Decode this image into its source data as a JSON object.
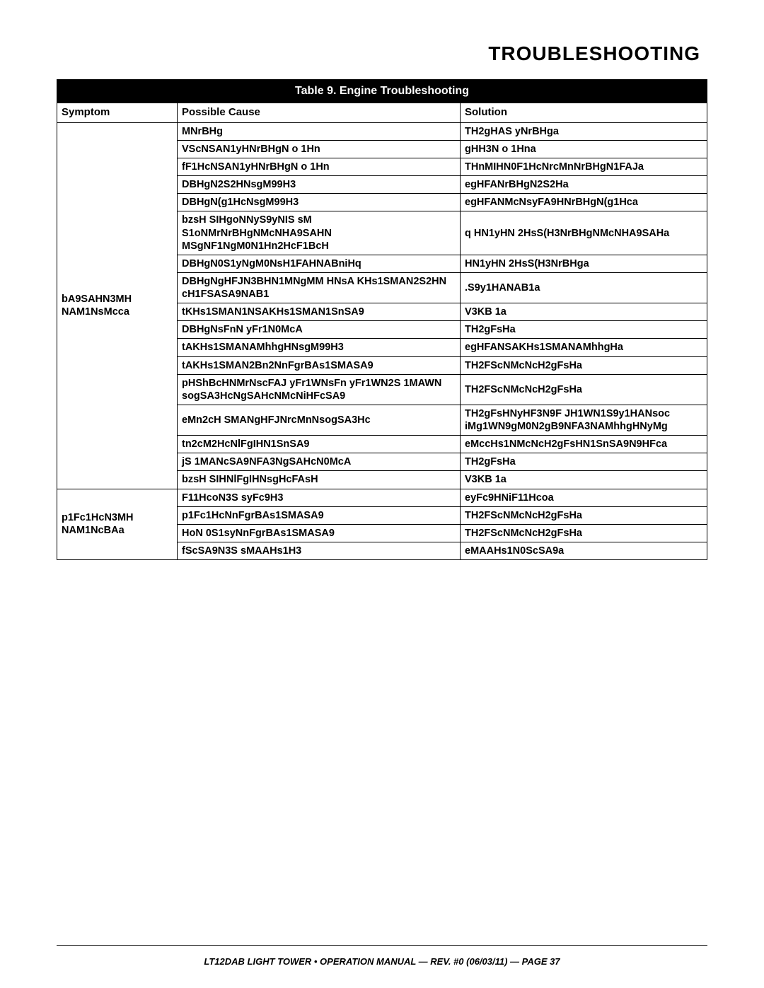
{
  "page_title": "TROUBLESHOOTING",
  "table_caption": "Table 9.  Engine Troubleshooting",
  "headers": {
    "symptom": "Symptom",
    "cause": "Possible Cause",
    "solution": "Solution"
  },
  "group1_symptom": "bA9SAHN3MH NAM1NsMcca",
  "group1_rows": [
    {
      "cause": "MNrBHg",
      "solution": "TH2gHAS yNrBHga"
    },
    {
      "cause": "VScNSAN1yHNrBHgN o 1Hn",
      "solution": "gHH3N o 1Hna"
    },
    {
      "cause": "fF1HcNSAN1yHNrBHgN o 1Hn",
      "solution": "THnMIHN0F1HcNrcMnNrBHgN1FAJa"
    },
    {
      "cause": "DBHgN2S2HNsgM99H3",
      "solution": "egHFANrBHgN2S2Ha"
    },
    {
      "cause": "DBHgN(g1HcNsgM99H3",
      "solution": "egHFANMcNsyFA9HNrBHgN(g1Hca"
    },
    {
      "cause": "bzsH  SIHgoNNyS9yNIS sM S1oNMrNrBHgNMcNHA9SAHN MSgNF1NgM0N1Hn2HcF1BcH",
      "solution": "q HN1yHN 2HsS(H3NrBHgNMcNHA9SAHa"
    },
    {
      "cause": "DBHgN0S1yNgM0NsH1FAHNABniHq",
      "solution": "HN1yHN 2HsS(H3NrBHga"
    },
    {
      "cause": "DBHgNgHFJN3BHN1MNgMM HNsA KHs1SMAN2S2HN cH1FSASA9NAB1",
      "solution": ".S9y1HANAB1a"
    },
    {
      "cause": "tKHs1SMAN1NSAKHs1SMAN1SnSA9",
      "solution": "V3KB 1a"
    },
    {
      "cause": "DBHgNsFnN yFr1N0McA",
      "solution": "TH2gFsHa"
    },
    {
      "cause": "tAKHs1SMANAMhhgHNsgM99H3",
      "solution": "egHFANSAKHs1SMANAMhhgHa"
    },
    {
      "cause": "tAKHs1SMAN2Bn2NnFgrBAs1SMASA9",
      "solution": "TH2FScNMcNcH2gFsHa"
    },
    {
      "cause": "pHShBcHNMrNscFAJ yFr1WNsFn yFr1WN2S 1MAWN sogSA3HcNgSAHcNMcNiHFcSA9",
      "solution": "TH2FScNMcNcH2gFsHa"
    },
    {
      "cause": "eMn2cH  SMANgHFJNrcMnNsogSA3Hc",
      "solution": "TH2gFsHNyHF3N9F JH1WN1S9y1HANsoc iMg1WN9gM0N2gB9NFA3NAMhhgHNyMg"
    },
    {
      "cause": "tn2cM2HcNlFgIHN1SnSA9",
      "solution": "eMccHs1NMcNcH2gFsHN1SnSA9N9HFca"
    },
    {
      "cause": "jS 1MANcSA9NFA3NgSAHcN0McA",
      "solution": "TH2gFsHa"
    },
    {
      "cause": "bzsH  SIHNlFgIHNsgHcFAsH",
      "solution": "V3KB 1a"
    }
  ],
  "group2_symptom": "p1Fc1HcN3MH NAM1NcBAa",
  "group2_rows": [
    {
      "cause": "F11HcoN3S syFc9H3",
      "solution": "eyFc9HNiF11Hcoa"
    },
    {
      "cause": "p1Fc1HcNnFgrBAs1SMASA9",
      "solution": "TH2FScNMcNcH2gFsHa"
    },
    {
      "cause": "HoN 0S1syNnFgrBAs1SMASA9",
      "solution": "TH2FScNMcNcH2gFsHa"
    },
    {
      "cause": "fScSA9N3S sMAAHs1H3",
      "solution": "eMAAHs1N0ScSA9a"
    }
  ],
  "footer": "LT12DAB LIGHT TOWER • OPERATION MANUAL — REV. #0 (06/03/11) — PAGE 37"
}
